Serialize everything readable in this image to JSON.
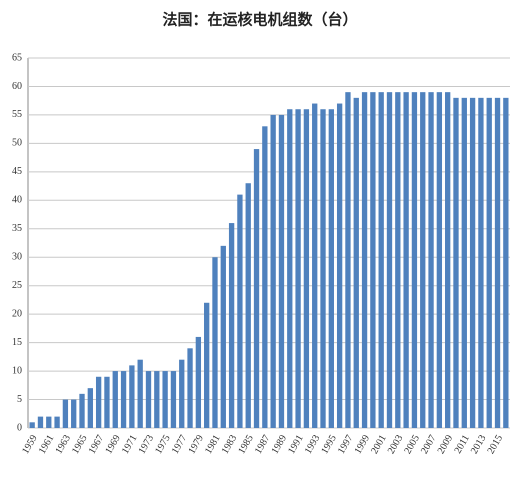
{
  "chart_data": {
    "type": "bar",
    "title": "法国：在运核电机组数（台）",
    "categories": [
      "1959",
      null,
      "1961",
      null,
      "1963",
      null,
      "1965",
      null,
      "1967",
      null,
      "1969",
      null,
      "1971",
      null,
      "1973",
      null,
      "1975",
      null,
      "1977",
      null,
      "1979",
      null,
      "1981",
      null,
      "1983",
      null,
      "1985",
      null,
      "1987",
      null,
      "1989",
      null,
      "1991",
      null,
      "1993",
      null,
      "1995",
      null,
      "1997",
      null,
      "1999",
      null,
      "2001",
      null,
      "2003",
      null,
      "2005",
      null,
      "2007",
      null,
      "2009",
      null,
      "2011",
      null,
      "2013",
      null,
      "2015",
      null
    ],
    "values": [
      1,
      2,
      2,
      2,
      5,
      5,
      6,
      7,
      9,
      9,
      10,
      10,
      11,
      12,
      10,
      10,
      10,
      10,
      12,
      14,
      16,
      22,
      30,
      32,
      36,
      41,
      43,
      49,
      53,
      55,
      55,
      56,
      56,
      56,
      57,
      56,
      56,
      57,
      59,
      58,
      59,
      59,
      59,
      59,
      59,
      59,
      59,
      59,
      59,
      59,
      59,
      58,
      58,
      58,
      58,
      58,
      58,
      58
    ],
    "color": "#4f81bd",
    "ylim": [
      0,
      65
    ],
    "yticks": [
      0,
      5,
      10,
      15,
      20,
      25,
      30,
      35,
      40,
      45,
      50,
      55,
      60,
      65
    ],
    "grid": true
  }
}
